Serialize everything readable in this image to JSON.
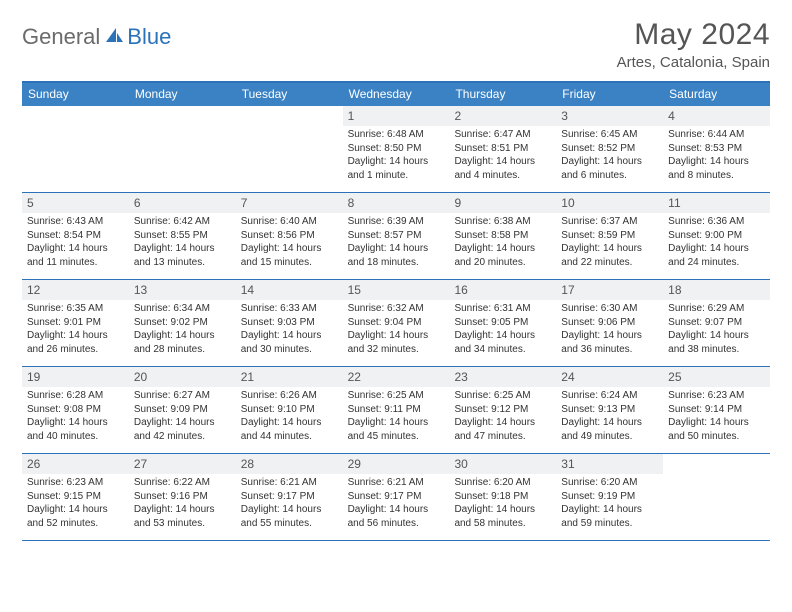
{
  "logo": {
    "part1": "General",
    "part2": "Blue"
  },
  "title": "May 2024",
  "location": "Artes, Catalonia, Spain",
  "colors": {
    "header_bg": "#3b82c4",
    "header_border": "#2b72b8",
    "daynum_bg": "#eff1f3",
    "text": "#333333",
    "title_text": "#555555"
  },
  "weekdays": [
    "Sunday",
    "Monday",
    "Tuesday",
    "Wednesday",
    "Thursday",
    "Friday",
    "Saturday"
  ],
  "weeks": [
    [
      null,
      null,
      null,
      {
        "n": "1",
        "sr": "6:48 AM",
        "ss": "8:50 PM",
        "dl": "14 hours and 1 minute."
      },
      {
        "n": "2",
        "sr": "6:47 AM",
        "ss": "8:51 PM",
        "dl": "14 hours and 4 minutes."
      },
      {
        "n": "3",
        "sr": "6:45 AM",
        "ss": "8:52 PM",
        "dl": "14 hours and 6 minutes."
      },
      {
        "n": "4",
        "sr": "6:44 AM",
        "ss": "8:53 PM",
        "dl": "14 hours and 8 minutes."
      }
    ],
    [
      {
        "n": "5",
        "sr": "6:43 AM",
        "ss": "8:54 PM",
        "dl": "14 hours and 11 minutes."
      },
      {
        "n": "6",
        "sr": "6:42 AM",
        "ss": "8:55 PM",
        "dl": "14 hours and 13 minutes."
      },
      {
        "n": "7",
        "sr": "6:40 AM",
        "ss": "8:56 PM",
        "dl": "14 hours and 15 minutes."
      },
      {
        "n": "8",
        "sr": "6:39 AM",
        "ss": "8:57 PM",
        "dl": "14 hours and 18 minutes."
      },
      {
        "n": "9",
        "sr": "6:38 AM",
        "ss": "8:58 PM",
        "dl": "14 hours and 20 minutes."
      },
      {
        "n": "10",
        "sr": "6:37 AM",
        "ss": "8:59 PM",
        "dl": "14 hours and 22 minutes."
      },
      {
        "n": "11",
        "sr": "6:36 AM",
        "ss": "9:00 PM",
        "dl": "14 hours and 24 minutes."
      }
    ],
    [
      {
        "n": "12",
        "sr": "6:35 AM",
        "ss": "9:01 PM",
        "dl": "14 hours and 26 minutes."
      },
      {
        "n": "13",
        "sr": "6:34 AM",
        "ss": "9:02 PM",
        "dl": "14 hours and 28 minutes."
      },
      {
        "n": "14",
        "sr": "6:33 AM",
        "ss": "9:03 PM",
        "dl": "14 hours and 30 minutes."
      },
      {
        "n": "15",
        "sr": "6:32 AM",
        "ss": "9:04 PM",
        "dl": "14 hours and 32 minutes."
      },
      {
        "n": "16",
        "sr": "6:31 AM",
        "ss": "9:05 PM",
        "dl": "14 hours and 34 minutes."
      },
      {
        "n": "17",
        "sr": "6:30 AM",
        "ss": "9:06 PM",
        "dl": "14 hours and 36 minutes."
      },
      {
        "n": "18",
        "sr": "6:29 AM",
        "ss": "9:07 PM",
        "dl": "14 hours and 38 minutes."
      }
    ],
    [
      {
        "n": "19",
        "sr": "6:28 AM",
        "ss": "9:08 PM",
        "dl": "14 hours and 40 minutes."
      },
      {
        "n": "20",
        "sr": "6:27 AM",
        "ss": "9:09 PM",
        "dl": "14 hours and 42 minutes."
      },
      {
        "n": "21",
        "sr": "6:26 AM",
        "ss": "9:10 PM",
        "dl": "14 hours and 44 minutes."
      },
      {
        "n": "22",
        "sr": "6:25 AM",
        "ss": "9:11 PM",
        "dl": "14 hours and 45 minutes."
      },
      {
        "n": "23",
        "sr": "6:25 AM",
        "ss": "9:12 PM",
        "dl": "14 hours and 47 minutes."
      },
      {
        "n": "24",
        "sr": "6:24 AM",
        "ss": "9:13 PM",
        "dl": "14 hours and 49 minutes."
      },
      {
        "n": "25",
        "sr": "6:23 AM",
        "ss": "9:14 PM",
        "dl": "14 hours and 50 minutes."
      }
    ],
    [
      {
        "n": "26",
        "sr": "6:23 AM",
        "ss": "9:15 PM",
        "dl": "14 hours and 52 minutes."
      },
      {
        "n": "27",
        "sr": "6:22 AM",
        "ss": "9:16 PM",
        "dl": "14 hours and 53 minutes."
      },
      {
        "n": "28",
        "sr": "6:21 AM",
        "ss": "9:17 PM",
        "dl": "14 hours and 55 minutes."
      },
      {
        "n": "29",
        "sr": "6:21 AM",
        "ss": "9:17 PM",
        "dl": "14 hours and 56 minutes."
      },
      {
        "n": "30",
        "sr": "6:20 AM",
        "ss": "9:18 PM",
        "dl": "14 hours and 58 minutes."
      },
      {
        "n": "31",
        "sr": "6:20 AM",
        "ss": "9:19 PM",
        "dl": "14 hours and 59 minutes."
      },
      null
    ]
  ],
  "labels": {
    "sunrise": "Sunrise: ",
    "sunset": "Sunset: ",
    "daylight": "Daylight: "
  }
}
